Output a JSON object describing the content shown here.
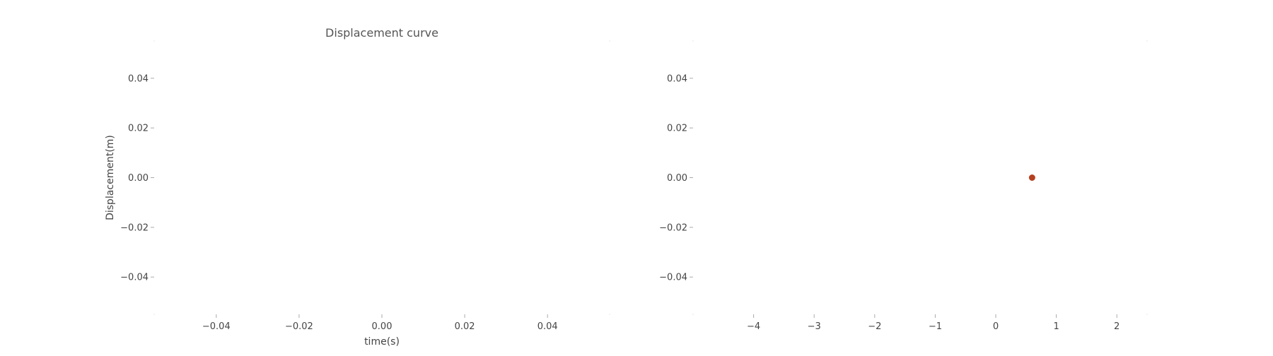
{
  "chart_data": [
    {
      "type": "line",
      "title": "Displacement curve",
      "xlabel": "time(s)",
      "ylabel": "Displacement(m)",
      "xlim": [
        -0.055,
        0.055
      ],
      "ylim": [
        -0.055,
        0.055
      ],
      "xticks": [
        -0.04,
        -0.02,
        0.0,
        0.02,
        0.04
      ],
      "yticks": [
        0.04,
        0.02,
        0.0,
        -0.02,
        -0.04
      ],
      "xtick_labels": [
        "−0.04",
        "−0.02",
        "0.00",
        "0.02",
        "0.04"
      ],
      "ytick_labels": [
        "0.04",
        "0.02",
        "0.00",
        "−0.02",
        "−0.04"
      ],
      "grid": false,
      "series": []
    },
    {
      "type": "scatter",
      "title": "",
      "xlabel": "",
      "ylabel": "",
      "xlim": [
        -5,
        2.5
      ],
      "ylim": [
        -0.055,
        0.055
      ],
      "xticks": [
        -4,
        -3,
        -2,
        -1,
        0,
        1,
        2
      ],
      "yticks": [
        0.04,
        0.02,
        0.0,
        -0.02,
        -0.04
      ],
      "xtick_labels": [
        "−4",
        "−3",
        "−2",
        "−1",
        "0",
        "1",
        "2"
      ],
      "ytick_labels": [
        "0.04",
        "0.02",
        "0.00",
        "−0.02",
        "−0.04"
      ],
      "grid": false,
      "series": [
        {
          "points": [
            {
              "x": 0.6,
              "y": 0.0
            }
          ],
          "color": "#b5401f"
        }
      ]
    }
  ]
}
